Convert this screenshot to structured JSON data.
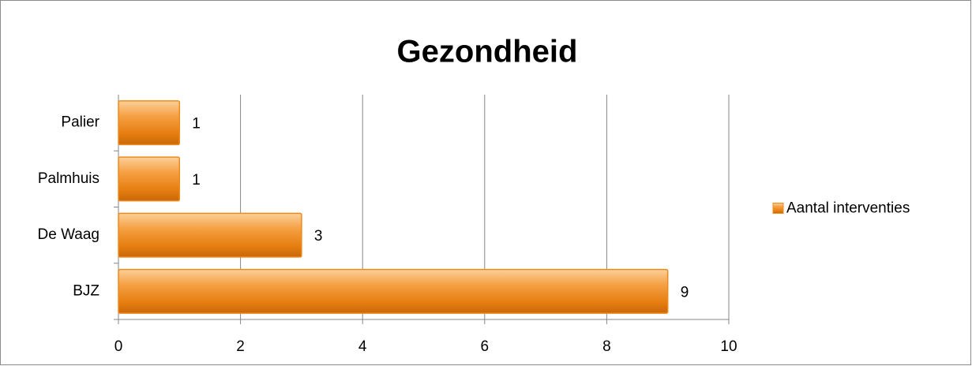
{
  "chart_data": {
    "type": "hbar",
    "title": "Gezondheid",
    "categories": [
      "BJZ",
      "De Waag",
      "Palmhuis",
      "Palier"
    ],
    "series": [
      {
        "name": "Aantal interventies",
        "color": "#f08a1c",
        "values": [
          9,
          3,
          1,
          1
        ]
      }
    ],
    "xlim": [
      0,
      10
    ],
    "xticks": [
      0,
      2,
      4,
      6,
      8,
      10
    ],
    "grid": true,
    "legend": "right",
    "data_labels": true
  }
}
